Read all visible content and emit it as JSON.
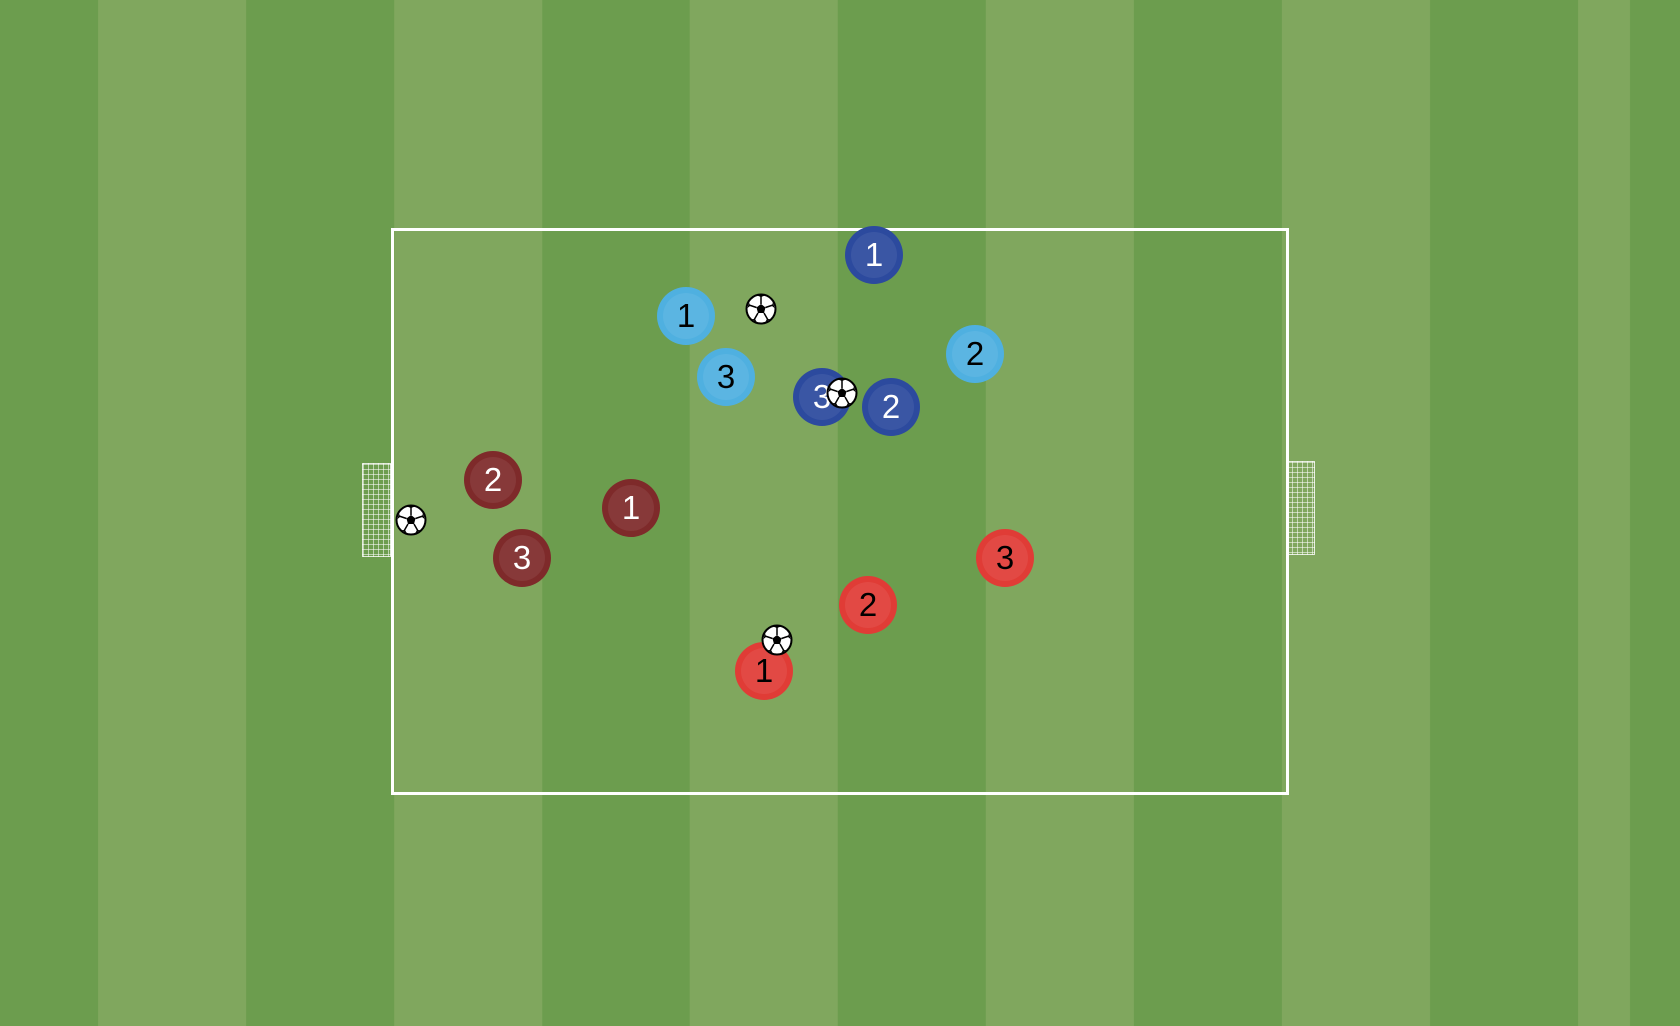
{
  "colors": {
    "team_dark_blue": "#2c4a9e",
    "team_light_blue": "#4fb0e0",
    "team_maroon": "#7e2a2a",
    "team_red": "#e03c36"
  },
  "players": [
    {
      "team": "dark_blue",
      "number": "1",
      "color": "#2c4a9e",
      "text": "#ffffff"
    },
    {
      "team": "dark_blue",
      "number": "3",
      "color": "#2c4a9e",
      "text": "#ffffff"
    },
    {
      "team": "dark_blue",
      "number": "2",
      "color": "#2c4a9e",
      "text": "#ffffff"
    },
    {
      "team": "light_blue",
      "number": "1",
      "color": "#4fb0e0",
      "text": "#000000"
    },
    {
      "team": "light_blue",
      "number": "3",
      "color": "#4fb0e0",
      "text": "#000000"
    },
    {
      "team": "light_blue",
      "number": "2",
      "color": "#4fb0e0",
      "text": "#000000"
    },
    {
      "team": "maroon",
      "number": "2",
      "color": "#7e2a2a",
      "text": "#ffffff"
    },
    {
      "team": "maroon",
      "number": "1",
      "color": "#7e2a2a",
      "text": "#ffffff"
    },
    {
      "team": "maroon",
      "number": "3",
      "color": "#7e2a2a",
      "text": "#ffffff"
    },
    {
      "team": "red",
      "number": "3",
      "color": "#e03c36",
      "text": "#000000"
    },
    {
      "team": "red",
      "number": "2",
      "color": "#e03c36",
      "text": "#000000"
    },
    {
      "team": "red",
      "number": "1",
      "color": "#e03c36",
      "text": "#000000"
    }
  ],
  "ball_count": 4
}
